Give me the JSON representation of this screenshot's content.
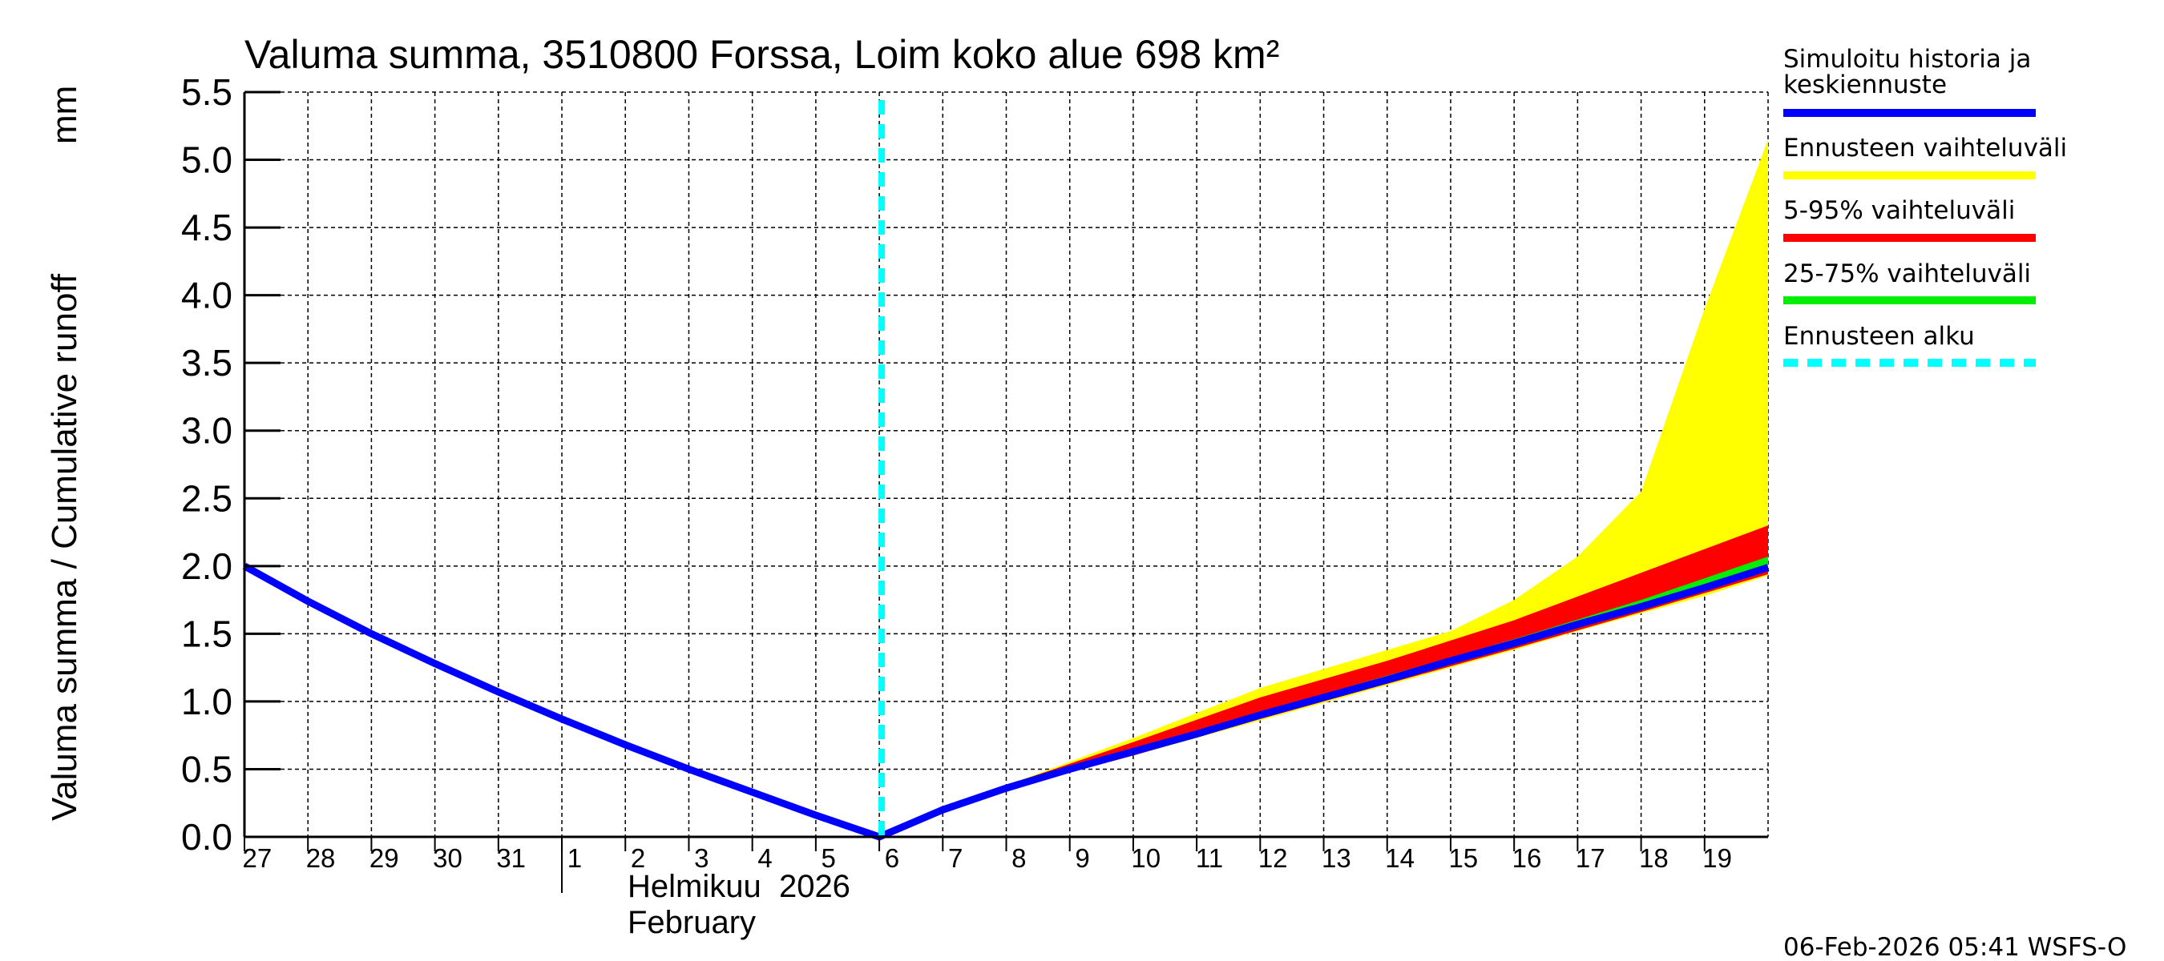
{
  "chart_data": {
    "type": "area",
    "title": "Valuma summa, 3510800 Forssa, Loim koko alue 698 km²",
    "ylabel": "Valuma summa / Cumulative runoff",
    "yunit": "mm",
    "xlabel_fi": "Helmikuu  2026",
    "xlabel_en": "February",
    "ylim": [
      0,
      5.5
    ],
    "xlim": [
      "2026-01-27",
      "2026-02-20"
    ],
    "yticks": [
      "0.0",
      "0.5",
      "1.0",
      "1.5",
      "2.0",
      "2.5",
      "3.0",
      "3.5",
      "4.0",
      "4.5",
      "5.0",
      "5.5"
    ],
    "xtick_labels": [
      "27",
      "28",
      "29",
      "30",
      "31",
      "1",
      "2",
      "3",
      "4",
      "5",
      "6",
      "7",
      "8",
      "9",
      "10",
      "11",
      "12",
      "13",
      "14",
      "15",
      "16",
      "17",
      "18",
      "19"
    ],
    "grid": true,
    "legend_position": "right",
    "forecast_start": "2026-02-06",
    "colors": {
      "median": "#0000ff",
      "range": "#ffff00",
      "p5_95": "#ff0000",
      "p25_75": "#00ee00",
      "forecast_start": "#00ffff"
    },
    "series": [
      {
        "name": "Simuloitu historia ja keskiennuste",
        "key": "median",
        "x": [
          "2026-01-27",
          "2026-01-28",
          "2026-01-29",
          "2026-01-30",
          "2026-01-31",
          "2026-02-01",
          "2026-02-02",
          "2026-02-03",
          "2026-02-04",
          "2026-02-05",
          "2026-02-06",
          "2026-02-07",
          "2026-02-08",
          "2026-02-09",
          "2026-02-10",
          "2026-02-11",
          "2026-02-12",
          "2026-02-13",
          "2026-02-14",
          "2026-02-15",
          "2026-02-16",
          "2026-02-17",
          "2026-02-18",
          "2026-02-19",
          "2026-02-20"
        ],
        "y": [
          2.0,
          1.74,
          1.5,
          1.28,
          1.07,
          0.87,
          0.68,
          0.5,
          0.33,
          0.16,
          0.0,
          0.2,
          0.36,
          0.5,
          0.63,
          0.76,
          0.9,
          1.03,
          1.16,
          1.3,
          1.43,
          1.57,
          1.7,
          1.84,
          1.99
        ]
      },
      {
        "name": "Ennusteen vaihteluväli",
        "key": "range",
        "x": [
          "2026-02-06",
          "2026-02-07",
          "2026-02-08",
          "2026-02-10",
          "2026-02-12",
          "2026-02-14",
          "2026-02-15",
          "2026-02-16",
          "2026-02-17",
          "2026-02-18",
          "2026-02-19",
          "2026-02-20"
        ],
        "upper": [
          0.0,
          0.2,
          0.38,
          0.73,
          1.1,
          1.38,
          1.52,
          1.75,
          2.07,
          2.55,
          3.9,
          5.15
        ],
        "lower": [
          0.0,
          0.2,
          0.35,
          0.6,
          0.86,
          1.12,
          1.25,
          1.38,
          1.52,
          1.65,
          1.78,
          1.93
        ]
      },
      {
        "name": "5-95% vaihteluväli",
        "key": "p5_95",
        "x": [
          "2026-02-06",
          "2026-02-07",
          "2026-02-08",
          "2026-02-10",
          "2026-02-12",
          "2026-02-14",
          "2026-02-16",
          "2026-02-18",
          "2026-02-20"
        ],
        "upper": [
          0.0,
          0.2,
          0.38,
          0.7,
          1.03,
          1.3,
          1.6,
          1.95,
          2.3
        ],
        "lower": [
          0.0,
          0.2,
          0.35,
          0.6,
          0.87,
          1.13,
          1.39,
          1.66,
          1.94
        ]
      },
      {
        "name": "25-75% vaihteluväli",
        "key": "p25_75",
        "x": [
          "2026-02-06",
          "2026-02-07",
          "2026-02-08",
          "2026-02-10",
          "2026-02-12",
          "2026-02-14",
          "2026-02-16",
          "2026-02-18",
          "2026-02-20"
        ],
        "upper": [
          0.0,
          0.2,
          0.37,
          0.65,
          0.92,
          1.19,
          1.46,
          1.75,
          2.07
        ],
        "lower": [
          0.0,
          0.2,
          0.36,
          0.62,
          0.89,
          1.15,
          1.42,
          1.69,
          1.98
        ]
      },
      {
        "name": "Ennusteen alku",
        "key": "forecast_start"
      }
    ],
    "timestamp": "06-Feb-2026 05:41 WSFS-O"
  }
}
